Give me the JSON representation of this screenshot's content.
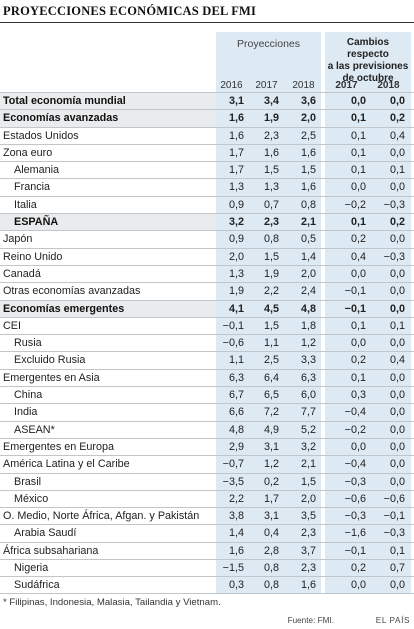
{
  "title": "PROYECCIONES ECONÓMICAS DEL FMI",
  "headers": {
    "proyecciones": "Proyecciones",
    "cambios": [
      "Cambios respecto",
      "a las previsiones",
      "de octubre"
    ],
    "years_proj": [
      "2016",
      "2017",
      "2018"
    ],
    "years_camb": [
      "2017",
      "2018"
    ]
  },
  "rows": [
    {
      "label": "Total economía mundial",
      "level": 0,
      "strong": true,
      "values": [
        "3,1",
        "3,4",
        "3,6",
        "0,0",
        "0,0"
      ]
    },
    {
      "label": "Economías avanzadas",
      "level": 0,
      "strong": true,
      "values": [
        "1,6",
        "1,9",
        "2,0",
        "0,1",
        "0,2"
      ]
    },
    {
      "label": "Estados Unidos",
      "level": 0,
      "strong": false,
      "values": [
        "1,6",
        "2,3",
        "2,5",
        "0,1",
        "0,4"
      ]
    },
    {
      "label": "Zona euro",
      "level": 0,
      "strong": false,
      "values": [
        "1,7",
        "1,6",
        "1,6",
        "0,1",
        "0,0"
      ]
    },
    {
      "label": "Alemania",
      "level": 1,
      "strong": false,
      "values": [
        "1,7",
        "1,5",
        "1,5",
        "0,1",
        "0,1"
      ]
    },
    {
      "label": "Francia",
      "level": 1,
      "strong": false,
      "values": [
        "1,3",
        "1,3",
        "1,6",
        "0,0",
        "0,0"
      ]
    },
    {
      "label": "Italia",
      "level": 1,
      "strong": false,
      "values": [
        "0,9",
        "0,7",
        "0,8",
        "−0,2",
        "−0,3"
      ]
    },
    {
      "label": "ESPAÑA",
      "level": 1,
      "strong": true,
      "values": [
        "3,2",
        "2,3",
        "2,1",
        "0,1",
        "0,2"
      ]
    },
    {
      "label": "Japón",
      "level": 0,
      "strong": false,
      "values": [
        "0,9",
        "0,8",
        "0,5",
        "0,2",
        "0,0"
      ]
    },
    {
      "label": "Reino Unido",
      "level": 0,
      "strong": false,
      "values": [
        "2,0",
        "1,5",
        "1,4",
        "0,4",
        "−0,3"
      ]
    },
    {
      "label": "Canadá",
      "level": 0,
      "strong": false,
      "values": [
        "1,3",
        "1,9",
        "2,0",
        "0,0",
        "0,0"
      ]
    },
    {
      "label": "Otras economías avanzadas",
      "level": 0,
      "strong": false,
      "values": [
        "1,9",
        "2,2",
        "2,4",
        "−0,1",
        "0,0"
      ]
    },
    {
      "label": "Economías emergentes",
      "level": 0,
      "strong": true,
      "values": [
        "4,1",
        "4,5",
        "4,8",
        "−0,1",
        "0,0"
      ]
    },
    {
      "label": "CEI",
      "level": 0,
      "strong": false,
      "values": [
        "−0,1",
        "1,5",
        "1,8",
        "0,1",
        "0,1"
      ]
    },
    {
      "label": "Rusia",
      "level": 1,
      "strong": false,
      "values": [
        "−0,6",
        "1,1",
        "1,2",
        "0,0",
        "0,0"
      ]
    },
    {
      "label": "Excluido Rusia",
      "level": 1,
      "strong": false,
      "values": [
        "1,1",
        "2,5",
        "3,3",
        "0,2",
        "0,4"
      ]
    },
    {
      "label": "Emergentes en Asia",
      "level": 0,
      "strong": false,
      "values": [
        "6,3",
        "6,4",
        "6,3",
        "0,1",
        "0,0"
      ]
    },
    {
      "label": "China",
      "level": 1,
      "strong": false,
      "values": [
        "6,7",
        "6,5",
        "6,0",
        "0,3",
        "0,0"
      ]
    },
    {
      "label": "India",
      "level": 1,
      "strong": false,
      "values": [
        "6,6",
        "7,2",
        "7,7",
        "−0,4",
        "0,0"
      ]
    },
    {
      "label": "ASEAN*",
      "level": 1,
      "strong": false,
      "values": [
        "4,8",
        "4,9",
        "5,2",
        "−0,2",
        "0,0"
      ]
    },
    {
      "label": "Emergentes en Europa",
      "level": 0,
      "strong": false,
      "values": [
        "2,9",
        "3,1",
        "3,2",
        "0,0",
        "0,0"
      ]
    },
    {
      "label": "América Latina y el Caribe",
      "level": 0,
      "strong": false,
      "values": [
        "−0,7",
        "1,2",
        "2,1",
        "−0,4",
        "0,0"
      ]
    },
    {
      "label": "Brasil",
      "level": 1,
      "strong": false,
      "values": [
        "−3,5",
        "0,2",
        "1,5",
        "−0,3",
        "0,0"
      ]
    },
    {
      "label": "México",
      "level": 1,
      "strong": false,
      "values": [
        "2,2",
        "1,7",
        "2,0",
        "−0,6",
        "−0,6"
      ]
    },
    {
      "label": "O. Medio, Norte África, Afgan. y Pakistán",
      "level": 0,
      "strong": false,
      "values": [
        "3,8",
        "3,1",
        "3,5",
        "−0,3",
        "−0,1"
      ]
    },
    {
      "label": "Arabia Saudí",
      "level": 1,
      "strong": false,
      "values": [
        "1,4",
        "0,4",
        "2,3",
        "−1,6",
        "−0,3"
      ]
    },
    {
      "label": "África subsahariana",
      "level": 0,
      "strong": false,
      "values": [
        "1,6",
        "2,8",
        "3,7",
        "−0,1",
        "0,1"
      ]
    },
    {
      "label": "Nigeria",
      "level": 1,
      "strong": false,
      "values": [
        "−1,5",
        "0,8",
        "2,3",
        "0,2",
        "0,7"
      ]
    },
    {
      "label": "Sudáfrica",
      "level": 1,
      "strong": false,
      "values": [
        "0,3",
        "0,8",
        "1,6",
        "0,0",
        "0,0"
      ]
    }
  ],
  "footnote": "* Filipinas, Indonesia, Malasia, Tailandia y Vietnam.",
  "source": "Fuente: FMI.",
  "brand": "EL PAÍS",
  "colors": {
    "header_band": "#dde9f3",
    "strong_row": "#e9ebed",
    "rule": "#bfc6cc"
  }
}
